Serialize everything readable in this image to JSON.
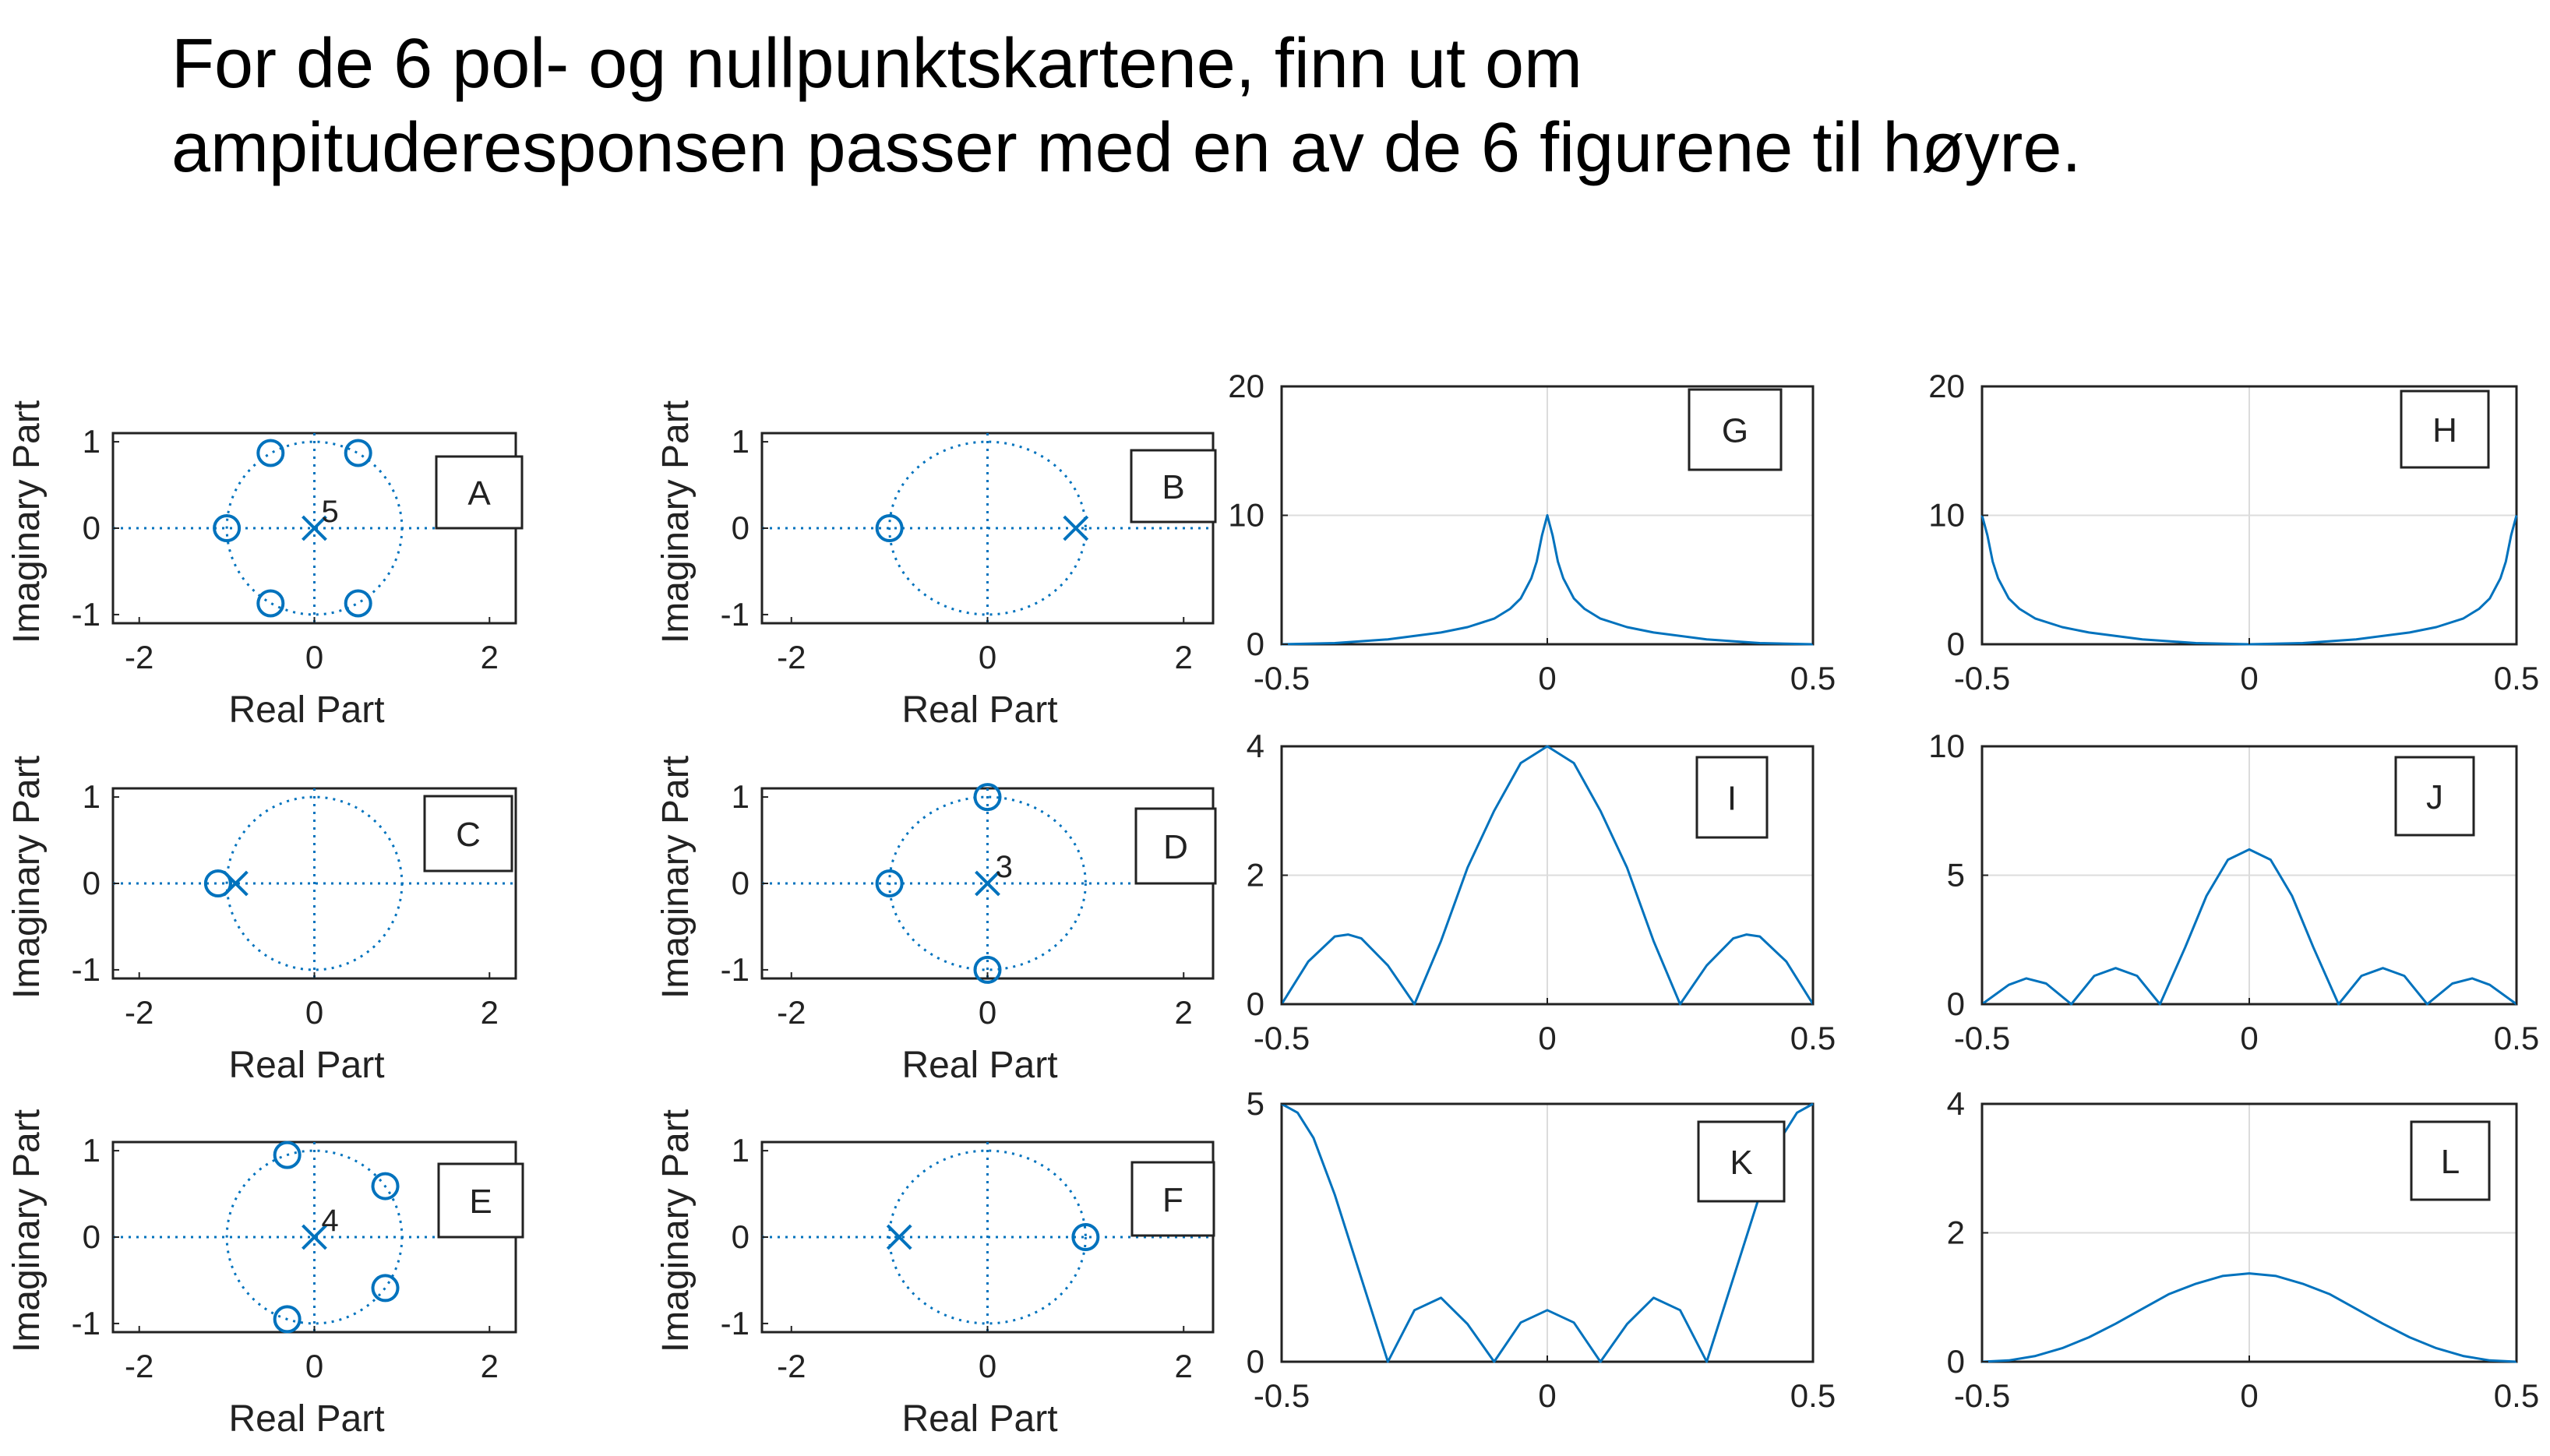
{
  "title": {
    "line1": "For de 6 pol- og nullpunktskartene, finn ut om",
    "line2": "ampituderesponsen passer med en av de 6 figurene til høyre."
  },
  "colors": {
    "series": "#0072BD",
    "axes": "#222222",
    "grid": "#dcdcdc"
  },
  "chart_data": [
    {
      "type": "scatter",
      "panel_label": "A",
      "xlabel": "Real Part",
      "ylabel": "Imaginary Part",
      "xticks": [
        -2,
        0,
        2
      ],
      "yticks": [
        -1,
        0,
        1
      ],
      "zeros": [
        [
          -1,
          0
        ],
        [
          -0.5,
          0.87
        ],
        [
          0.5,
          0.87
        ],
        [
          -0.5,
          -0.87
        ],
        [
          0.5,
          -0.87
        ]
      ],
      "poles": [
        [
          0,
          0
        ]
      ],
      "multiplicity_labels": [
        {
          "text": "5",
          "x": 0.08,
          "y": 0.2
        }
      ],
      "unit_circle": true
    },
    {
      "type": "scatter",
      "panel_label": "B",
      "xlabel": "Real Part",
      "ylabel": "Imaginary Part",
      "xticks": [
        -2,
        0,
        2
      ],
      "yticks": [
        -1,
        0,
        1
      ],
      "zeros": [
        [
          -1,
          0
        ]
      ],
      "poles": [
        [
          0.9,
          0
        ]
      ],
      "multiplicity_labels": [],
      "unit_circle": true
    },
    {
      "type": "scatter",
      "panel_label": "C",
      "xlabel": "Real Part",
      "ylabel": "Imaginary Part",
      "xticks": [
        -2,
        0,
        2
      ],
      "yticks": [
        -1,
        0,
        1
      ],
      "zeros": [
        [
          -1.1,
          0
        ]
      ],
      "poles": [
        [
          -0.9,
          0
        ]
      ],
      "multiplicity_labels": [],
      "unit_circle": true
    },
    {
      "type": "scatter",
      "panel_label": "D",
      "xlabel": "Real Part",
      "ylabel": "Imaginary Part",
      "xticks": [
        -2,
        0,
        2
      ],
      "yticks": [
        -1,
        0,
        1
      ],
      "zeros": [
        [
          -1,
          0
        ],
        [
          0,
          1
        ],
        [
          0,
          -1
        ]
      ],
      "poles": [
        [
          0,
          0
        ]
      ],
      "multiplicity_labels": [
        {
          "text": "3",
          "x": 0.08,
          "y": 0.2
        }
      ],
      "unit_circle": true
    },
    {
      "type": "scatter",
      "panel_label": "E",
      "xlabel": "Real Part",
      "ylabel": "Imaginary Part",
      "xticks": [
        -2,
        0,
        2
      ],
      "yticks": [
        -1,
        0,
        1
      ],
      "zeros": [
        [
          -0.31,
          0.95
        ],
        [
          0.81,
          0.59
        ],
        [
          0.81,
          -0.59
        ],
        [
          -0.31,
          -0.95
        ]
      ],
      "poles": [
        [
          0,
          0
        ]
      ],
      "multiplicity_labels": [
        {
          "text": "4",
          "x": 0.08,
          "y": 0.2
        }
      ],
      "unit_circle": true
    },
    {
      "type": "scatter",
      "panel_label": "F",
      "xlabel": "Real Part",
      "ylabel": "Imaginary Part",
      "xticks": [
        -2,
        0,
        2
      ],
      "yticks": [
        -1,
        0,
        1
      ],
      "zeros": [
        [
          1,
          0
        ]
      ],
      "poles": [
        [
          -0.9,
          0
        ]
      ],
      "multiplicity_labels": [],
      "unit_circle": true
    },
    {
      "type": "line",
      "panel_label": "G",
      "xlim": [
        -0.5,
        0.5
      ],
      "ylim": [
        0,
        20
      ],
      "xticks": [
        -0.5,
        0,
        0.5
      ],
      "yticks": [
        0,
        10,
        20
      ],
      "x": [
        -0.5,
        -0.4,
        -0.3,
        -0.2,
        -0.15,
        -0.1,
        -0.07,
        -0.05,
        -0.03,
        -0.02,
        -0.01,
        0,
        0.01,
        0.02,
        0.03,
        0.05,
        0.07,
        0.1,
        0.15,
        0.2,
        0.3,
        0.4,
        0.5
      ],
      "y": [
        0.0,
        0.09,
        0.38,
        0.91,
        1.33,
        1.99,
        2.75,
        3.55,
        5.12,
        6.41,
        8.45,
        10.0,
        8.45,
        6.41,
        5.12,
        3.55,
        2.75,
        1.99,
        1.33,
        0.91,
        0.38,
        0.09,
        0.0
      ]
    },
    {
      "type": "line",
      "panel_label": "H",
      "xlim": [
        -0.5,
        0.5
      ],
      "ylim": [
        0,
        20
      ],
      "xticks": [
        -0.5,
        0,
        0.5
      ],
      "yticks": [
        0,
        10,
        20
      ],
      "x": [
        -0.5,
        -0.49,
        -0.48,
        -0.47,
        -0.45,
        -0.43,
        -0.4,
        -0.35,
        -0.3,
        -0.2,
        -0.1,
        0,
        0.1,
        0.2,
        0.3,
        0.35,
        0.4,
        0.43,
        0.45,
        0.47,
        0.48,
        0.49,
        0.5
      ],
      "y": [
        10.0,
        8.45,
        6.41,
        5.12,
        3.55,
        2.75,
        1.99,
        1.33,
        0.91,
        0.38,
        0.09,
        0.0,
        0.09,
        0.38,
        0.91,
        1.33,
        1.99,
        2.75,
        3.55,
        5.12,
        6.41,
        8.45,
        10.0
      ]
    },
    {
      "type": "line",
      "panel_label": "I",
      "xlim": [
        -0.5,
        0.5
      ],
      "ylim": [
        0,
        4
      ],
      "xticks": [
        -0.5,
        0,
        0.5
      ],
      "yticks": [
        0,
        2,
        4
      ],
      "x": [
        -0.5,
        -0.45,
        -0.4,
        -0.375,
        -0.35,
        -0.3,
        -0.25,
        -0.2,
        -0.15,
        -0.1,
        -0.05,
        0,
        0.05,
        0.1,
        0.15,
        0.2,
        0.25,
        0.3,
        0.35,
        0.375,
        0.4,
        0.45,
        0.5
      ],
      "y": [
        0.0,
        0.66,
        1.05,
        1.08,
        1.02,
        0.6,
        0.0,
        0.98,
        2.12,
        3.0,
        3.74,
        4.0,
        3.74,
        3.0,
        2.12,
        0.98,
        0.0,
        0.6,
        1.02,
        1.08,
        1.05,
        0.66,
        0.0
      ]
    },
    {
      "type": "line",
      "panel_label": "J",
      "xlim": [
        -0.5,
        0.5
      ],
      "ylim": [
        0,
        10
      ],
      "xticks": [
        -0.5,
        0,
        0.5
      ],
      "yticks": [
        0,
        5,
        10
      ],
      "x": [
        -0.5,
        -0.45,
        -0.417,
        -0.38,
        -0.333,
        -0.29,
        -0.25,
        -0.21,
        -0.167,
        -0.12,
        -0.08,
        -0.04,
        0,
        0.04,
        0.08,
        0.12,
        0.167,
        0.21,
        0.25,
        0.29,
        0.333,
        0.38,
        0.417,
        0.45,
        0.5
      ],
      "y": [
        0.0,
        0.75,
        1.0,
        0.8,
        0.0,
        1.1,
        1.4,
        1.1,
        0.0,
        2.2,
        4.2,
        5.6,
        6.0,
        5.6,
        4.2,
        2.2,
        0.0,
        1.1,
        1.4,
        1.1,
        0.0,
        0.8,
        1.0,
        0.75,
        0.0
      ]
    },
    {
      "type": "line",
      "panel_label": "K",
      "xlim": [
        -0.5,
        0.5
      ],
      "ylim": [
        0,
        5
      ],
      "xticks": [
        -0.5,
        0,
        0.5
      ],
      "yticks": [
        0,
        5
      ],
      "x": [
        -0.5,
        -0.47,
        -0.44,
        -0.4,
        -0.35,
        -0.3,
        -0.25,
        -0.2,
        -0.15,
        -0.1,
        -0.05,
        0,
        0.05,
        0.1,
        0.15,
        0.2,
        0.25,
        0.3,
        0.35,
        0.4,
        0.44,
        0.47,
        0.5
      ],
      "y": [
        5.0,
        4.83,
        4.34,
        3.24,
        1.62,
        0.0,
        1.0,
        1.24,
        0.73,
        0.0,
        0.76,
        1.0,
        0.76,
        0.0,
        0.73,
        1.24,
        1.0,
        0.0,
        1.62,
        3.24,
        4.34,
        4.83,
        5.0
      ]
    },
    {
      "type": "line",
      "panel_label": "L",
      "xlim": [
        -0.5,
        0.5
      ],
      "ylim": [
        0,
        4
      ],
      "xticks": [
        -0.5,
        0,
        0.5
      ],
      "yticks": [
        0,
        2,
        4
      ],
      "x": [
        -0.5,
        -0.45,
        -0.4,
        -0.35,
        -0.3,
        -0.25,
        -0.2,
        -0.15,
        -0.1,
        -0.05,
        0,
        0.05,
        0.1,
        0.15,
        0.2,
        0.25,
        0.3,
        0.35,
        0.4,
        0.45,
        0.5
      ],
      "y": [
        0.0,
        0.02,
        0.09,
        0.21,
        0.38,
        0.59,
        0.82,
        1.05,
        1.21,
        1.33,
        1.37,
        1.33,
        1.21,
        1.05,
        0.82,
        0.59,
        0.38,
        0.21,
        0.09,
        0.02,
        0.0
      ]
    }
  ]
}
